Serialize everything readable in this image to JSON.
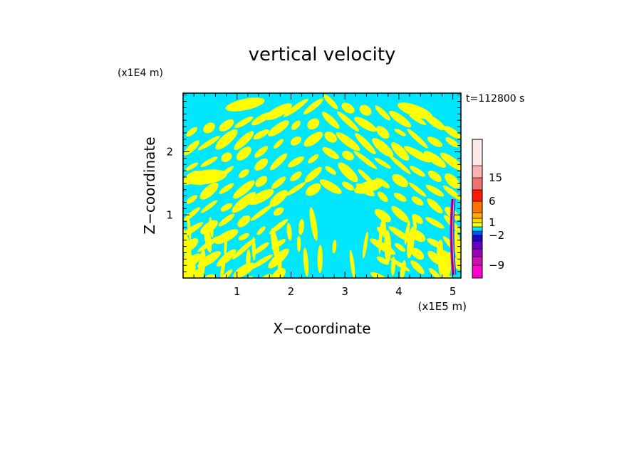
{
  "chart_data": {
    "type": "heatmap",
    "title": "vertical velocity",
    "xlabel": "X−coordinate",
    "ylabel": "Z−coordinate",
    "x_unit": "(x1E5 m)",
    "y_unit": "(x1E4 m)",
    "time_label": "t=112800 s",
    "xlim": [
      0,
      5.15
    ],
    "ylim": [
      0,
      2.93
    ],
    "x_ticks": [
      1,
      2,
      3,
      4,
      5
    ],
    "y_ticks": [
      1,
      2
    ],
    "colorbar": {
      "levels": [
        {
          "min": -12,
          "max": -9,
          "color": "#ff00c8"
        },
        {
          "min": -9,
          "max": -6,
          "color": "#cc10b0"
        },
        {
          "min": -6,
          "max": -4,
          "color": "#9a00b8"
        },
        {
          "min": -4,
          "max": -3,
          "color": "#6a00c8"
        },
        {
          "min": -3,
          "max": -2,
          "color": "#2200c8"
        },
        {
          "min": -2,
          "max": -1,
          "color": "#0050ff"
        },
        {
          "min": -1,
          "max": 0,
          "color": "#00e6ff"
        },
        {
          "min": 0,
          "max": 1,
          "color": "#ffff00"
        },
        {
          "min": 1,
          "max": 2,
          "color": "#ffd700"
        },
        {
          "min": 2,
          "max": 3,
          "color": "#ffaa00"
        },
        {
          "min": 3,
          "max": 6,
          "color": "#ff7000"
        },
        {
          "min": 6,
          "max": 10,
          "color": "#ff1800"
        },
        {
          "min": 10,
          "max": 15,
          "color": "#f07070"
        },
        {
          "min": 15,
          "max": 20,
          "color": "#ffb0b0"
        },
        {
          "min": 20,
          "max": 25,
          "color": "#ffe8e8"
        }
      ],
      "tick_labels": [
        "15",
        "6",
        "1",
        "−2",
        "−9"
      ]
    },
    "dominant_colors": {
      "positive": "#ffff00",
      "negative": "#00e6ff"
    }
  }
}
